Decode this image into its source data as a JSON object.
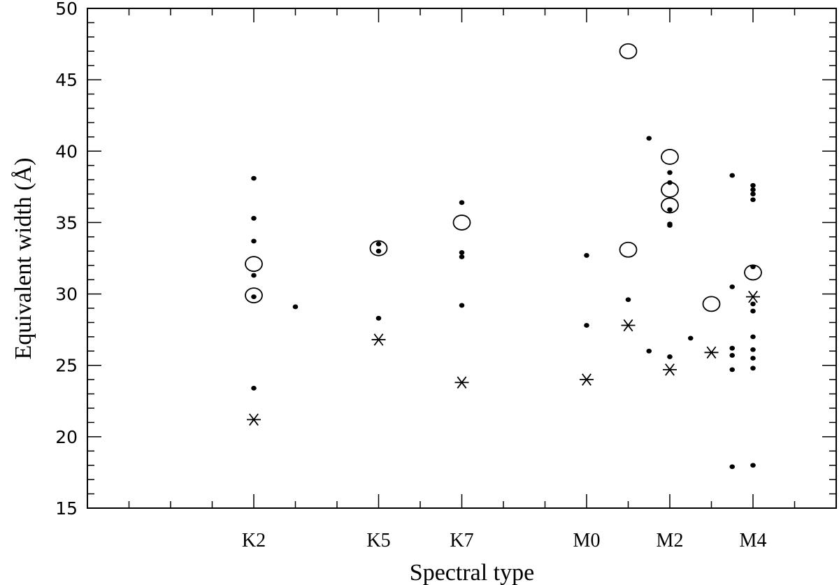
{
  "chart_data": {
    "type": "scatter",
    "title": "",
    "xlabel": "Spectral type",
    "ylabel": "Equivalent width (Å)",
    "ylim": [
      15,
      50
    ],
    "y_major_ticks": [
      15,
      20,
      25,
      30,
      35,
      40,
      45,
      50
    ],
    "y_minor_step": 1,
    "x_domain": [
      0,
      18
    ],
    "x_tick_index_range": [
      1,
      17
    ],
    "categories": [
      {
        "label": "K2",
        "x": 4
      },
      {
        "label": "K5",
        "x": 7
      },
      {
        "label": "K7",
        "x": 9
      },
      {
        "label": "M0",
        "x": 12
      },
      {
        "label": "M2",
        "x": 14
      },
      {
        "label": "M4",
        "x": 16
      }
    ],
    "grid": false,
    "legend": "none",
    "series": [
      {
        "marker": "dot",
        "points": [
          [
            4,
            38.1
          ],
          [
            4,
            35.3
          ],
          [
            4,
            33.7
          ],
          [
            4,
            31.3
          ],
          [
            4,
            29.8
          ],
          [
            4,
            23.4
          ],
          [
            5,
            29.1
          ],
          [
            7,
            33.5
          ],
          [
            7,
            33.0
          ],
          [
            7,
            28.3
          ],
          [
            9,
            36.4
          ],
          [
            9,
            32.9
          ],
          [
            9,
            32.6
          ],
          [
            9,
            29.2
          ],
          [
            12,
            32.7
          ],
          [
            12,
            27.8
          ],
          [
            13,
            29.6
          ],
          [
            13.5,
            40.9
          ],
          [
            13.5,
            26.0
          ],
          [
            14,
            38.5
          ],
          [
            14,
            37.8
          ],
          [
            14,
            35.9
          ],
          [
            14,
            34.9
          ],
          [
            14,
            34.8
          ],
          [
            14,
            25.6
          ],
          [
            14.5,
            26.9
          ],
          [
            15.5,
            38.3
          ],
          [
            15.5,
            30.5
          ],
          [
            15.5,
            26.2
          ],
          [
            15.5,
            25.7
          ],
          [
            15.5,
            24.7
          ],
          [
            15.5,
            17.9
          ],
          [
            16,
            37.6
          ],
          [
            16,
            37.3
          ],
          [
            16,
            37.0
          ],
          [
            16,
            36.6
          ],
          [
            16,
            31.9
          ],
          [
            16,
            29.3
          ],
          [
            16,
            28.8
          ],
          [
            16,
            27.0
          ],
          [
            16,
            26.1
          ],
          [
            16,
            25.5
          ],
          [
            16,
            24.8
          ],
          [
            16,
            18.0
          ]
        ]
      },
      {
        "marker": "open-circle",
        "points": [
          [
            4,
            32.1
          ],
          [
            4,
            29.9
          ],
          [
            7,
            33.2
          ],
          [
            9,
            35.0
          ],
          [
            13,
            47.0
          ],
          [
            13,
            33.1
          ],
          [
            14,
            39.6
          ],
          [
            14,
            37.3
          ],
          [
            14,
            36.2
          ],
          [
            15,
            29.3
          ],
          [
            16,
            31.5
          ]
        ]
      },
      {
        "marker": "asterisk",
        "points": [
          [
            4,
            21.2
          ],
          [
            7,
            26.8
          ],
          [
            9,
            23.8
          ],
          [
            12,
            24.0
          ],
          [
            13,
            27.8
          ],
          [
            14,
            24.7
          ],
          [
            15,
            25.9
          ],
          [
            16,
            29.8
          ]
        ]
      }
    ]
  }
}
